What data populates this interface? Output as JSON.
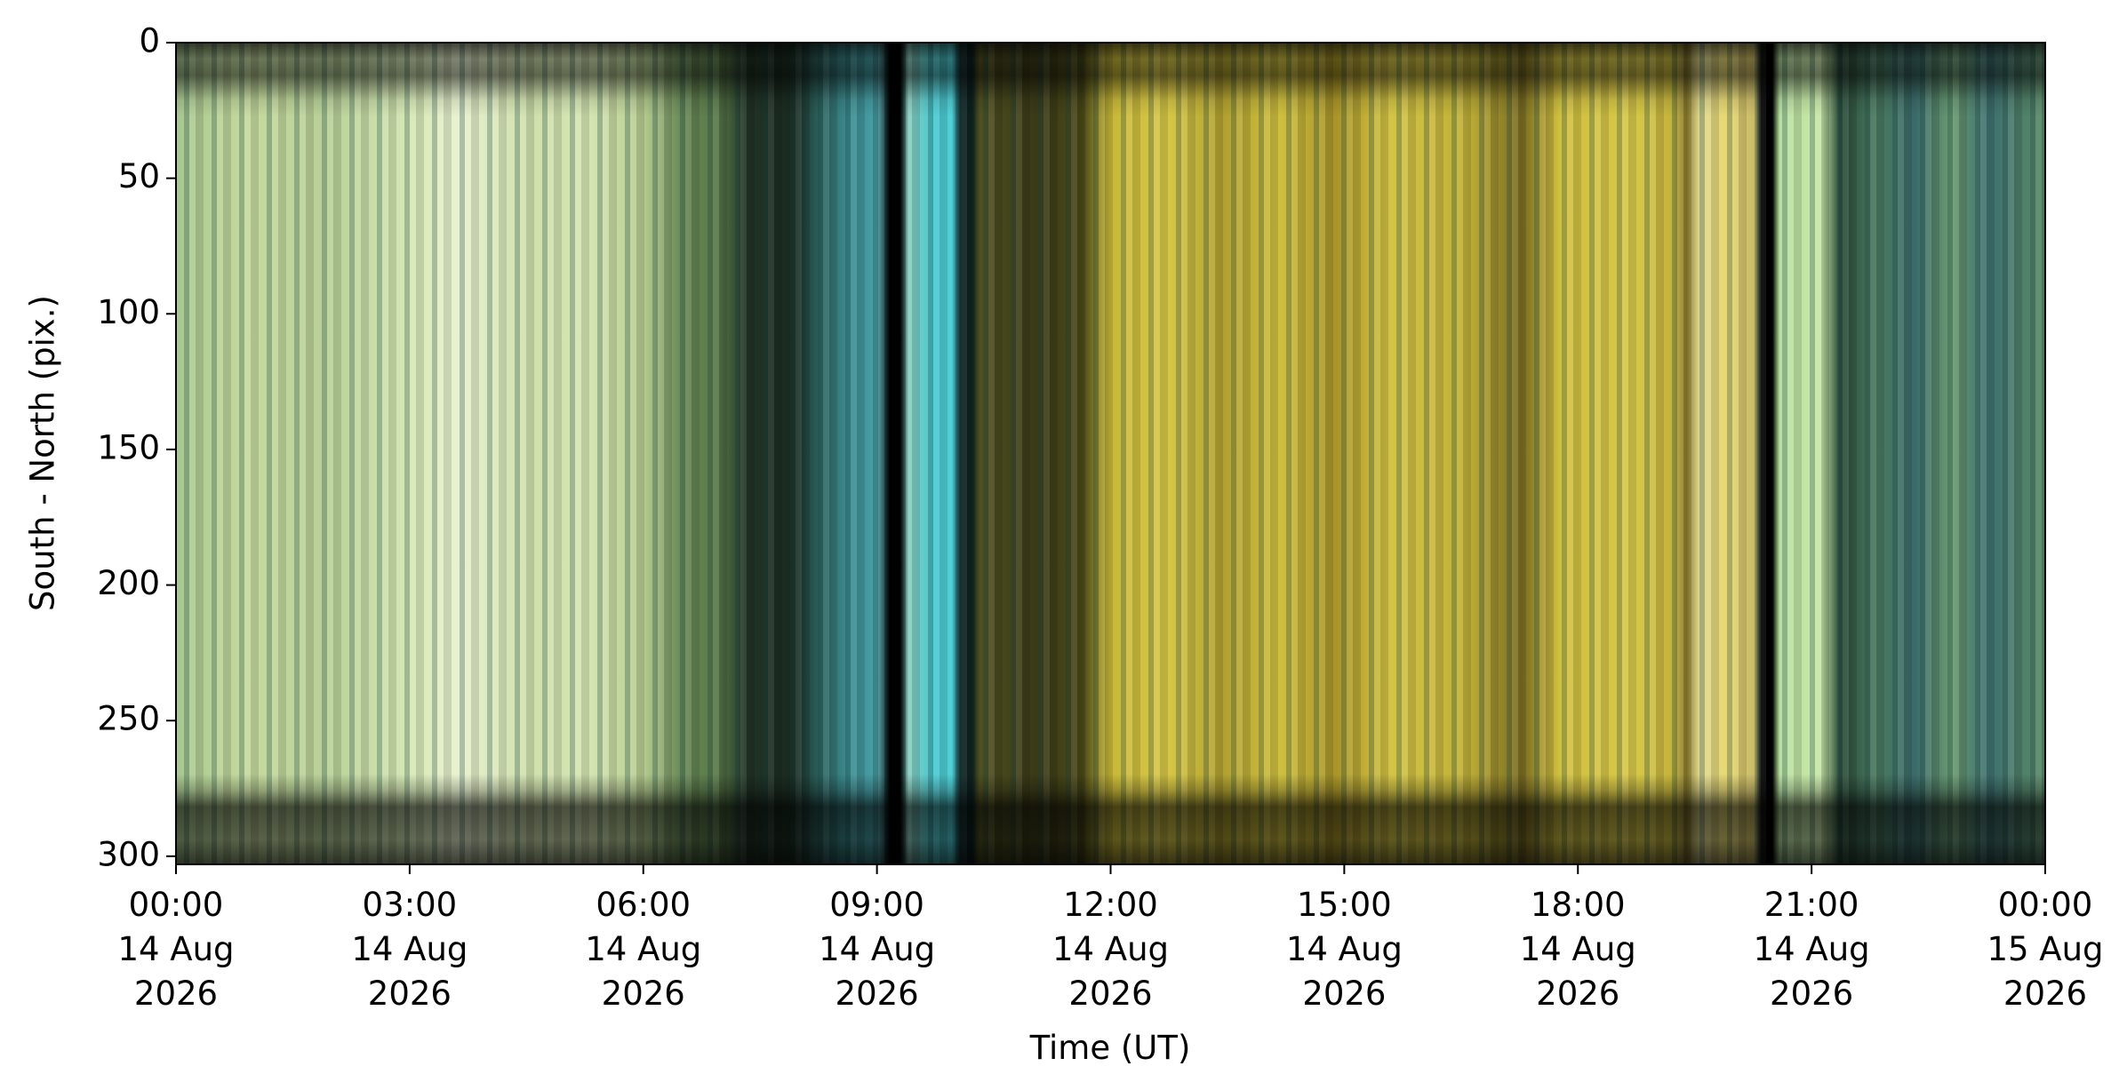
{
  "chart_data": {
    "type": "image",
    "xlabel": "Time (UT)",
    "ylabel": "South - North (pix.)",
    "xlim": [
      "2026-08-14T00:00",
      "2026-08-15T00:00"
    ],
    "xticks": [
      {
        "value": "2026-08-14T00:00",
        "label": "00:00\n14 Aug\n2026"
      },
      {
        "value": "2026-08-14T03:00",
        "label": "03:00\n14 Aug\n2026"
      },
      {
        "value": "2026-08-14T06:00",
        "label": "06:00\n14 Aug\n2026"
      },
      {
        "value": "2026-08-14T09:00",
        "label": "09:00\n14 Aug\n2026"
      },
      {
        "value": "2026-08-14T12:00",
        "label": "12:00\n14 Aug\n2026"
      },
      {
        "value": "2026-08-14T15:00",
        "label": "15:00\n14 Aug\n2026"
      },
      {
        "value": "2026-08-14T18:00",
        "label": "18:00\n14 Aug\n2026"
      },
      {
        "value": "2026-08-14T21:00",
        "label": "21:00\n14 Aug\n2026"
      },
      {
        "value": "2026-08-15T00:00",
        "label": "00:00\n15 Aug\n2026"
      }
    ],
    "ylim": [
      303,
      0
    ],
    "yticks": [
      0,
      50,
      100,
      150,
      200,
      250,
      300
    ]
  }
}
